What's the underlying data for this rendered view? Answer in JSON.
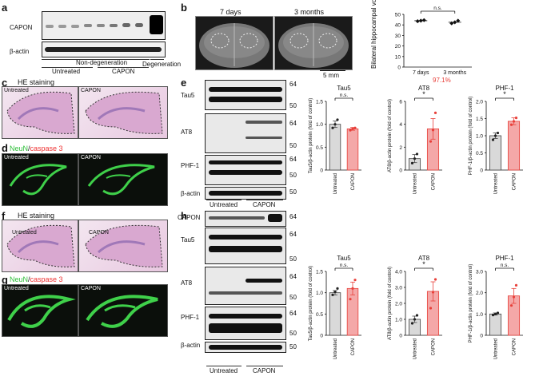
{
  "panels": {
    "a": {
      "label": "a",
      "rows": [
        "CAPON",
        "β-actin"
      ],
      "groups": [
        "Non-degeneration",
        "Untreated",
        "CAPON",
        "Degeneration"
      ]
    },
    "b": {
      "label": "b",
      "mri_labels": [
        "7 days",
        "3 months"
      ],
      "scale": "5 mm",
      "ylabel": "Bilateral hippocampal volume (mm³)",
      "sig": "n.s.",
      "percent": "97.1%"
    },
    "c": {
      "label": "c",
      "title": "HE staining",
      "img_labels": [
        "Untreated",
        "CAPON"
      ]
    },
    "d": {
      "label": "d",
      "title_green": "NeuN",
      "title_sep": "/",
      "title_red": "caspase 3",
      "img_labels": [
        "Untreated",
        "CAPON"
      ]
    },
    "e": {
      "label": "e",
      "rows": [
        "Tau5",
        "AT8",
        "PHF-1",
        "β-actin"
      ],
      "mw": [
        "64",
        "50",
        "64",
        "50",
        "64",
        "50",
        "50"
      ],
      "groups": [
        "Untreated",
        "CAPON"
      ]
    },
    "f": {
      "label": "f",
      "title": "HE staining",
      "img_labels": [
        "Untreated",
        "CAPON"
      ]
    },
    "g": {
      "label": "g",
      "title_green": "NeuN",
      "title_sep": "/",
      "title_red": "caspase 3",
      "img_labels": [
        "Untreated",
        "CAPON"
      ]
    },
    "h": {
      "label": "h",
      "rows": [
        "CAPON",
        "Tau5",
        "AT8",
        "PHF-1",
        "β-actin"
      ],
      "mw": [
        "64",
        "64",
        "50",
        "64",
        "50",
        "64",
        "50",
        "50"
      ],
      "groups": [
        "Untreated",
        "CAPON"
      ]
    }
  },
  "colors": {
    "untreated_bar": "#d9d9d9",
    "capon_bar": "#f4a8a8",
    "capon_dot": "#e8403a",
    "percent_red": "#e8403a"
  },
  "chart_data": [
    {
      "id": "b",
      "type": "scatter",
      "categories": [
        "7 days",
        "3 months"
      ],
      "values": [
        44,
        42.5
      ],
      "points": [
        [
          43.5,
          44,
          44.5
        ],
        [
          41.5,
          42.5,
          44
        ]
      ],
      "ylabel": "Bilateral hippocampal volume (mm³)",
      "ylim": [
        0,
        50
      ],
      "yticks": [
        "0",
        "10",
        "20",
        "30",
        "40",
        "50"
      ],
      "sig": "n.s.",
      "annotation": "97.1%"
    },
    {
      "id": "e-tau5",
      "type": "bar",
      "title": "Tau5",
      "categories": [
        "Untreated",
        "CAPON"
      ],
      "values": [
        1.0,
        0.9
      ],
      "errors": [
        0.07,
        0.03
      ],
      "points": [
        [
          0.92,
          1.0,
          1.1
        ],
        [
          0.87,
          0.9,
          0.92
        ]
      ],
      "ylabel": "Tau5/β-actin protein (fold of control)",
      "ylim": [
        0,
        1.5
      ],
      "yticks": [
        "0",
        "0.5",
        "1.0",
        "1.5"
      ],
      "sig": "n.s."
    },
    {
      "id": "e-at8",
      "type": "bar",
      "title": "AT8",
      "categories": [
        "Untreated",
        "CAPON"
      ],
      "values": [
        1.0,
        3.6
      ],
      "errors": [
        0.35,
        0.9
      ],
      "points": [
        [
          0.6,
          1.0,
          1.4
        ],
        [
          2.5,
          3.5,
          5.0
        ]
      ],
      "ylabel": "AT8/β-actin protein (fold of control)",
      "ylim": [
        0,
        6
      ],
      "yticks": [
        "0",
        "2",
        "4",
        "6"
      ],
      "sig": "*"
    },
    {
      "id": "e-phf1",
      "type": "bar",
      "title": "PHF-1",
      "categories": [
        "Untreated",
        "CAPON"
      ],
      "values": [
        1.0,
        1.42
      ],
      "errors": [
        0.08,
        0.1
      ],
      "points": [
        [
          0.88,
          1.0,
          1.08
        ],
        [
          1.32,
          1.42,
          1.52
        ]
      ],
      "ylabel": "PHF-1/β-actin protein (fold of control)",
      "ylim": [
        0,
        2.0
      ],
      "yticks": [
        "0",
        "0.5",
        "1.0",
        "1.5",
        "2.0"
      ],
      "sig": "*"
    },
    {
      "id": "h-tau5",
      "type": "bar",
      "title": "Tau5",
      "categories": [
        "Untreated",
        "CAPON"
      ],
      "values": [
        1.0,
        1.1
      ],
      "errors": [
        0.05,
        0.15
      ],
      "points": [
        [
          0.95,
          1.02,
          1.1
        ],
        [
          0.85,
          1.1,
          1.3
        ]
      ],
      "ylabel": "Tau5/β-actin protein (fold of control)",
      "ylim": [
        0,
        1.5
      ],
      "yticks": [
        "0",
        "0.5",
        "1.0",
        "1.5"
      ],
      "sig": "n.s."
    },
    {
      "id": "h-at8",
      "type": "bar",
      "title": "AT8",
      "categories": [
        "Untreated",
        "CAPON"
      ],
      "values": [
        1.0,
        2.75
      ],
      "errors": [
        0.2,
        0.6
      ],
      "points": [
        [
          0.75,
          1.0,
          1.25
        ],
        [
          1.7,
          2.7,
          3.5
        ]
      ],
      "ylabel": "AT8/β-actin protein (fold of control)",
      "ylim": [
        0,
        4.0
      ],
      "yticks": [
        "0",
        "1.0",
        "2.0",
        "3.0",
        "4.0"
      ],
      "sig": "*"
    },
    {
      "id": "h-phf1",
      "type": "bar",
      "title": "PHF-1",
      "categories": [
        "Untreated",
        "CAPON"
      ],
      "values": [
        1.0,
        1.85
      ],
      "errors": [
        0.05,
        0.35
      ],
      "points": [
        [
          0.95,
          1.0,
          1.05
        ],
        [
          1.4,
          1.8,
          2.35
        ]
      ],
      "ylabel": "PHF-1/β-actin protein (fold of control)",
      "ylim": [
        0,
        3.0
      ],
      "yticks": [
        "0",
        "1.0",
        "2.0",
        "3.0"
      ],
      "sig": "n.s."
    }
  ]
}
